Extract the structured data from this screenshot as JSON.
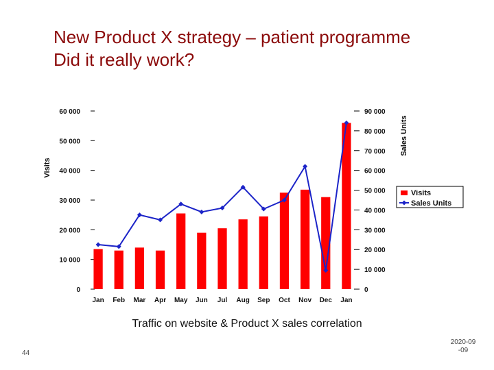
{
  "slide": {
    "title_line1": "New Product X strategy – patient programme",
    "title_line2": "Did it really work?",
    "caption": "Traffic on website & Product X sales correlation",
    "page_number": "44",
    "date_text": "2020-09-09"
  },
  "colors": {
    "title": "#8b0a0a",
    "bar": "#ff0000",
    "line": "#1c24c8"
  },
  "chart_data": {
    "type": "bar",
    "categories": [
      "Jan",
      "Feb",
      "Mar",
      "Apr",
      "May",
      "Jun",
      "Jul",
      "Aug",
      "Sep",
      "Oct",
      "Nov",
      "Dec",
      "Jan"
    ],
    "series": [
      {
        "name": "Visits",
        "type": "bar",
        "axis": "left",
        "values": [
          13500,
          13000,
          14000,
          13000,
          25500,
          19000,
          20500,
          23500,
          24500,
          32500,
          33500,
          31000,
          56000
        ]
      },
      {
        "name": "Sales Units",
        "type": "line",
        "axis": "right",
        "values": [
          22500,
          21500,
          37500,
          35000,
          43000,
          39000,
          41000,
          51500,
          40500,
          45000,
          62000,
          9500,
          84000
        ]
      }
    ],
    "left_axis": {
      "label": "Visits",
      "ylim": [
        0,
        60000
      ],
      "ticks": [
        "0",
        "10 000",
        "20 000",
        "30 000",
        "40 000",
        "50 000",
        "60 000"
      ]
    },
    "right_axis": {
      "label": "Sales Units",
      "ylim": [
        0,
        90000
      ],
      "ticks": [
        "0",
        "10 000",
        "20 000",
        "30 000",
        "40 000",
        "50 000",
        "60 000",
        "70 000",
        "80 000",
        "90 000"
      ]
    },
    "legend": {
      "position": "right",
      "entries": [
        "Visits",
        "Sales Units"
      ]
    },
    "grid": false
  }
}
